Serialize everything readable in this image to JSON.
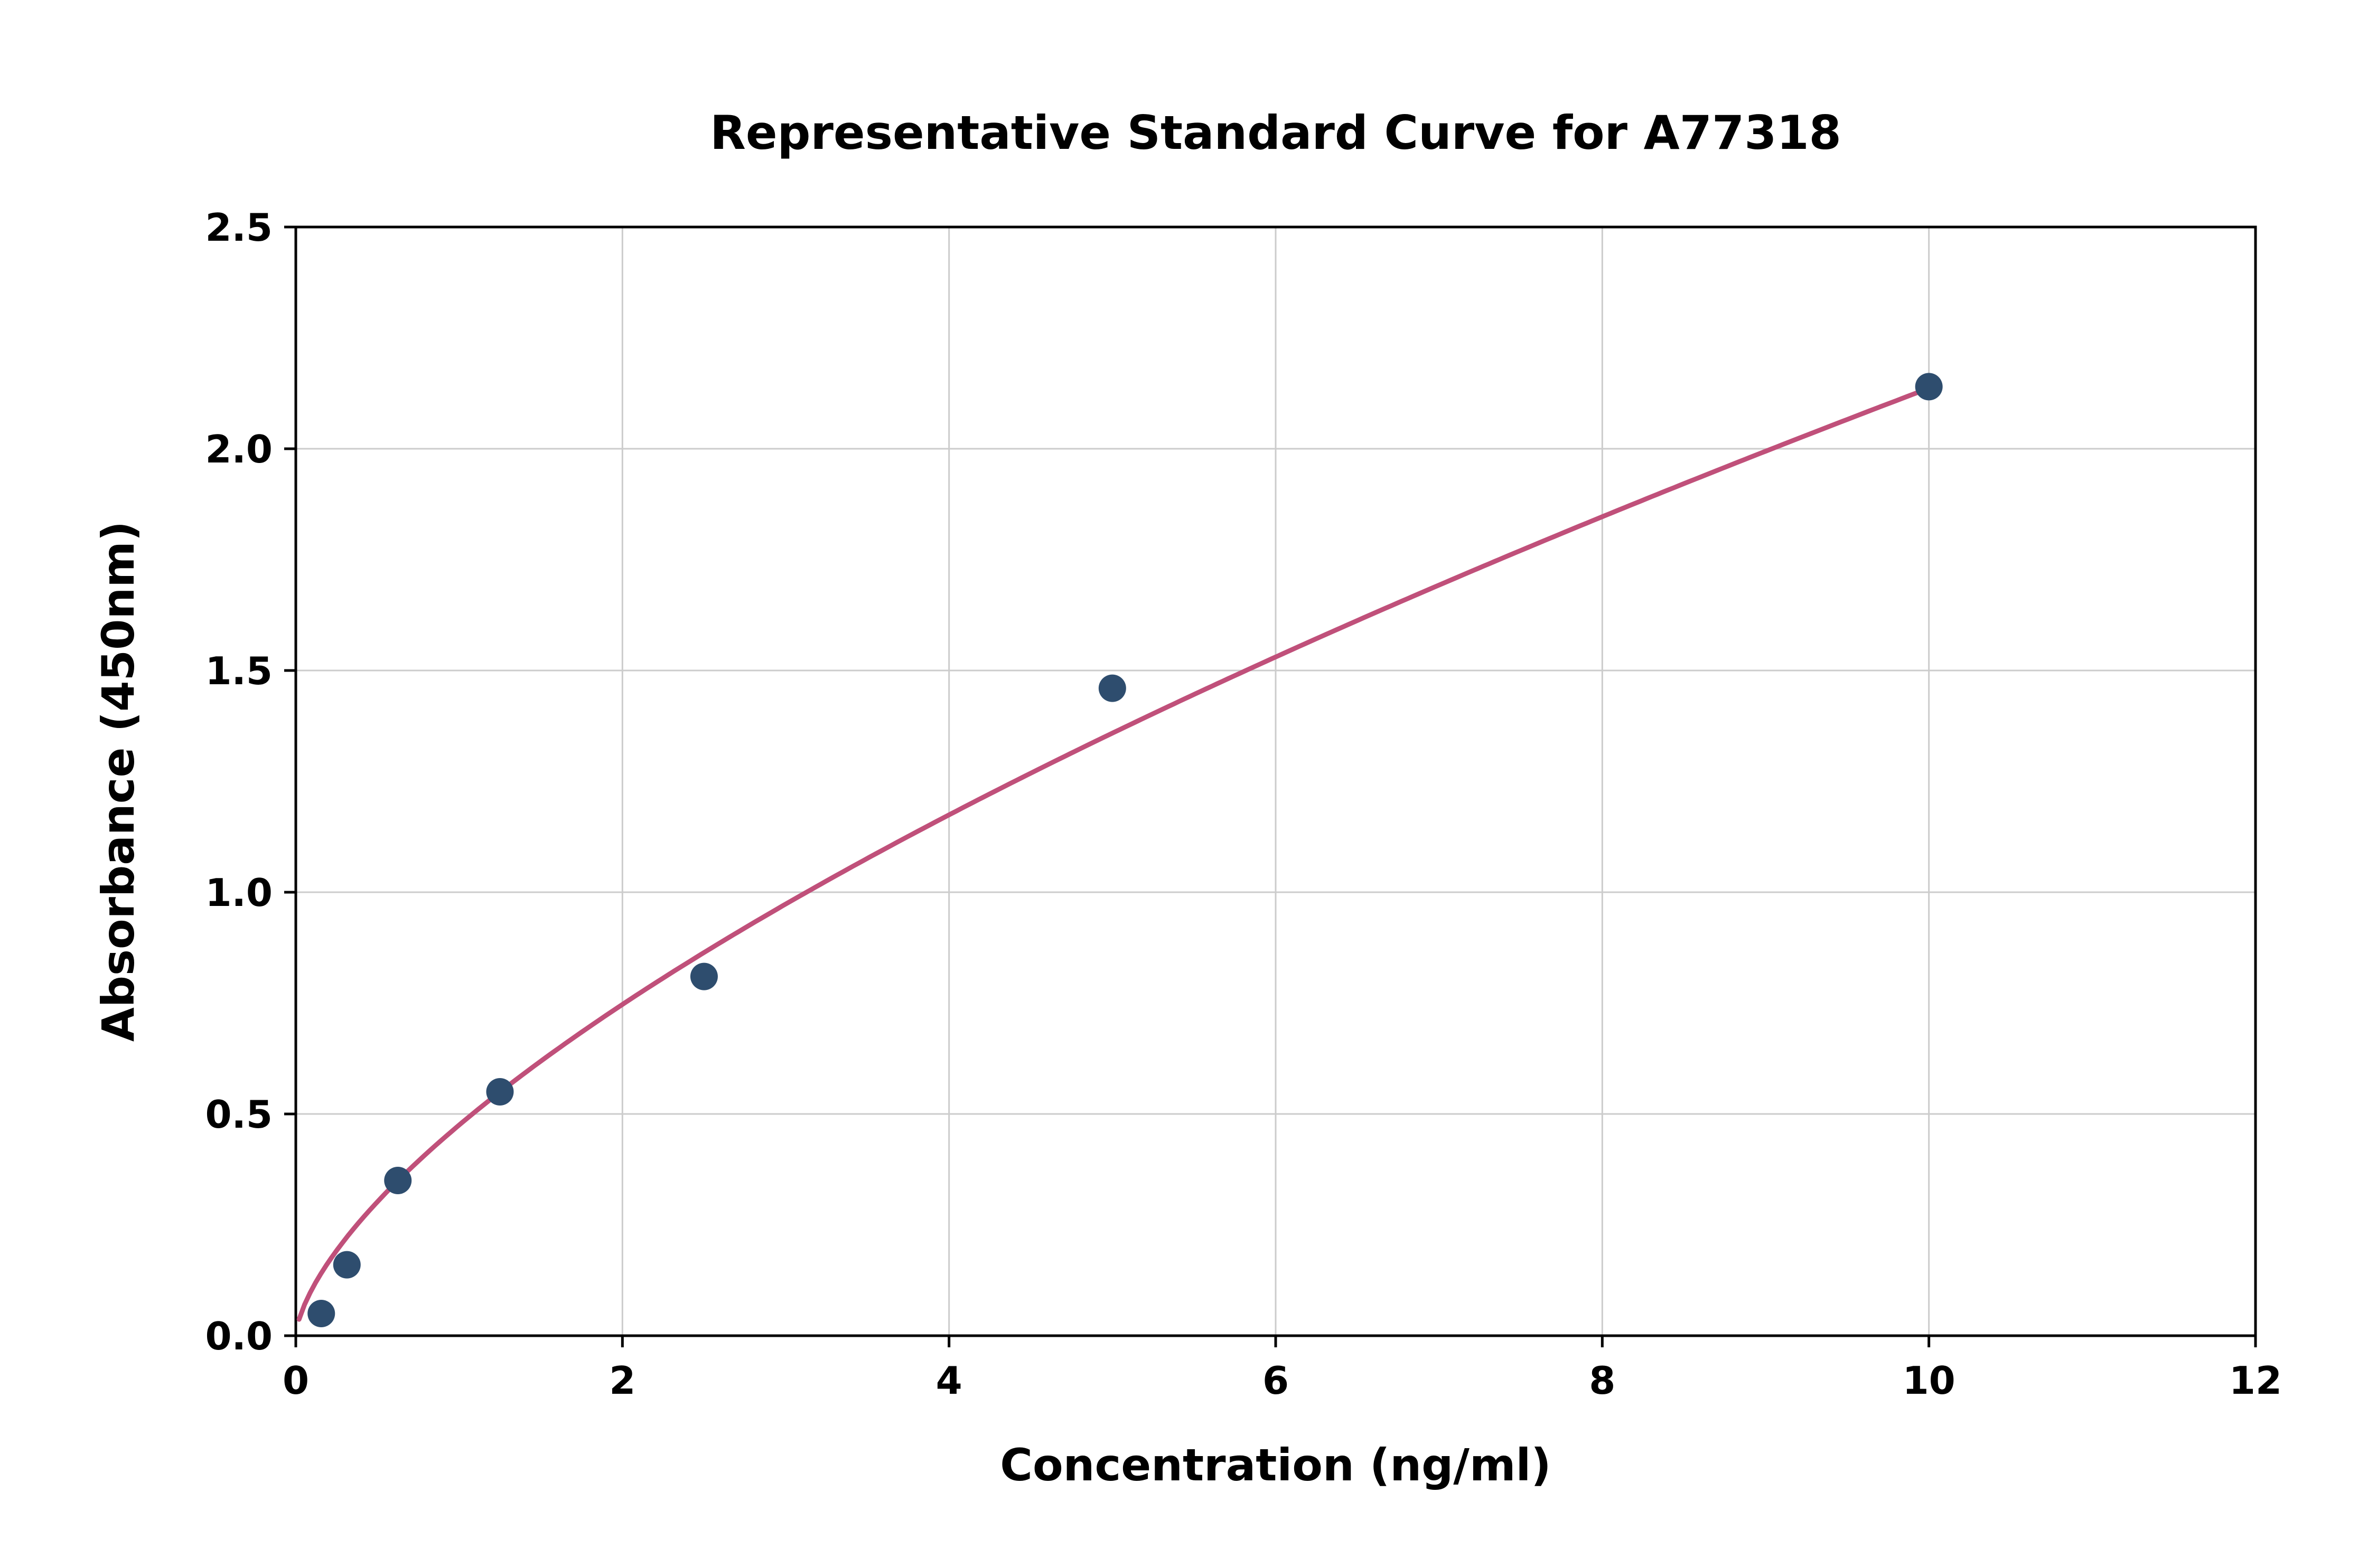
{
  "chart_data": {
    "type": "scatter",
    "title": "Representative Standard Curve for A77318",
    "xlabel": "Concentration (ng/ml)",
    "ylabel": "Absorbance (450nm)",
    "xlim": [
      0,
      12
    ],
    "ylim": [
      0,
      2.5
    ],
    "x_ticks": [
      0,
      2,
      4,
      6,
      8,
      10,
      12
    ],
    "x_tick_labels": [
      "0",
      "2",
      "4",
      "6",
      "8",
      "10",
      "12"
    ],
    "y_ticks": [
      0,
      0.5,
      1.0,
      1.5,
      2.0,
      2.5
    ],
    "y_tick_labels": [
      "0.0",
      "0.5",
      "1.0",
      "1.5",
      "2.0",
      "2.5"
    ],
    "grid": true,
    "legend": "none",
    "points": [
      {
        "x": 0.156,
        "y": 0.05
      },
      {
        "x": 0.313,
        "y": 0.16
      },
      {
        "x": 0.625,
        "y": 0.35
      },
      {
        "x": 1.25,
        "y": 0.55
      },
      {
        "x": 2.5,
        "y": 0.81
      },
      {
        "x": 5.0,
        "y": 1.46
      },
      {
        "x": 10.0,
        "y": 2.14
      }
    ],
    "trend": {
      "type": "power",
      "a": 0.475,
      "b": 0.653,
      "x_start": 0.02,
      "x_end": 10.0
    },
    "colors": {
      "point": "#2e4d6e",
      "line": "#c0507a",
      "grid": "#cccccc",
      "axis": "#000000",
      "text": "#000000",
      "background": "#ffffff"
    }
  }
}
